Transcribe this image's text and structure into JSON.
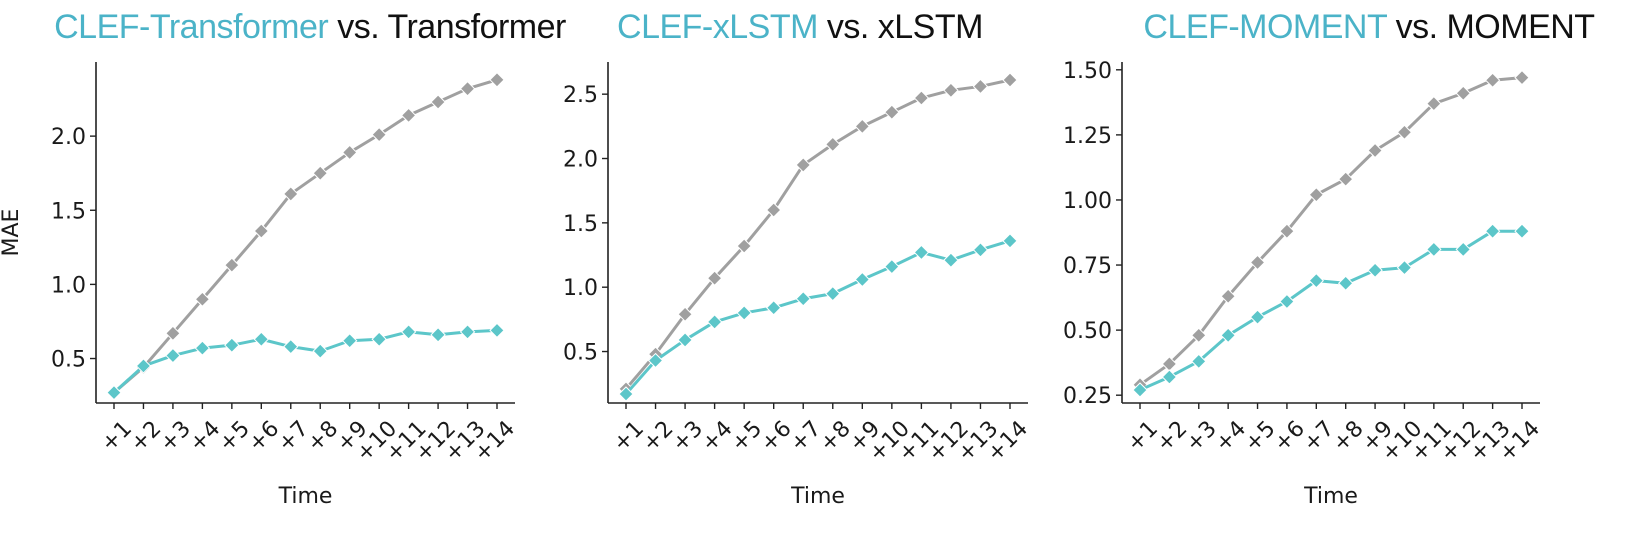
{
  "colors": {
    "baseline": "#a0a0a0",
    "clef": "#5cc6c9",
    "title_highlight": "#4bb3c8",
    "title_text": "#111111",
    "axis": "#222222"
  },
  "chart_data": [
    {
      "type": "line",
      "title_highlight": "CLEF-Transformer",
      "title_rest": " vs. Transformer",
      "xlabel": "Time",
      "ylabel": "MAE",
      "categories": [
        "+1",
        "+2",
        "+3",
        "+4",
        "+5",
        "+6",
        "+7",
        "+8",
        "+9",
        "+10",
        "+11",
        "+12",
        "+13",
        "+14"
      ],
      "ylim": [
        0.2,
        2.5
      ],
      "yticks": [
        0.5,
        1.0,
        1.5,
        2.0
      ],
      "ytick_labels": [
        "0.5",
        "1.0",
        "1.5",
        "2.0"
      ],
      "series": [
        {
          "name": "Transformer",
          "color": "#a0a0a0",
          "values": [
            0.27,
            0.44,
            0.67,
            0.9,
            1.13,
            1.36,
            1.61,
            1.75,
            1.89,
            2.01,
            2.14,
            2.23,
            2.32,
            2.38
          ]
        },
        {
          "name": "CLEF-Transformer",
          "color": "#5cc6c9",
          "values": [
            0.27,
            0.45,
            0.52,
            0.57,
            0.59,
            0.63,
            0.58,
            0.55,
            0.62,
            0.63,
            0.68,
            0.66,
            0.68,
            0.69
          ]
        }
      ]
    },
    {
      "type": "line",
      "title_highlight": "CLEF-xLSTM",
      "title_rest": " vs. xLSTM",
      "xlabel": "Time",
      "ylabel": "",
      "categories": [
        "+1",
        "+2",
        "+3",
        "+4",
        "+5",
        "+6",
        "+7",
        "+8",
        "+9",
        "+10",
        "+11",
        "+12",
        "+13",
        "+14"
      ],
      "ylim": [
        0.1,
        2.75
      ],
      "yticks": [
        0.5,
        1.0,
        1.5,
        2.0,
        2.5
      ],
      "ytick_labels": [
        "0.5",
        "1.0",
        "1.5",
        "2.0",
        "2.5"
      ],
      "series": [
        {
          "name": "xLSTM",
          "color": "#a0a0a0",
          "values": [
            0.21,
            0.48,
            0.79,
            1.07,
            1.32,
            1.6,
            1.95,
            2.11,
            2.25,
            2.36,
            2.47,
            2.53,
            2.56,
            2.61
          ]
        },
        {
          "name": "CLEF-xLSTM",
          "color": "#5cc6c9",
          "values": [
            0.17,
            0.43,
            0.59,
            0.73,
            0.8,
            0.84,
            0.91,
            0.95,
            1.06,
            1.16,
            1.27,
            1.21,
            1.29,
            1.36
          ]
        }
      ]
    },
    {
      "type": "line",
      "title_highlight": "CLEF-MOMENT",
      "title_rest": " vs. MOMENT",
      "xlabel": "Time",
      "ylabel": "",
      "categories": [
        "+1",
        "+2",
        "+3",
        "+4",
        "+5",
        "+6",
        "+7",
        "+8",
        "+9",
        "+10",
        "+11",
        "+12",
        "+13",
        "+14"
      ],
      "ylim": [
        0.22,
        1.53
      ],
      "yticks": [
        0.25,
        0.5,
        0.75,
        1.0,
        1.25,
        1.5
      ],
      "ytick_labels": [
        "0.25",
        "0.50",
        "0.75",
        "1.00",
        "1.25",
        "1.50"
      ],
      "series": [
        {
          "name": "MOMENT",
          "color": "#a0a0a0",
          "values": [
            0.29,
            0.37,
            0.48,
            0.63,
            0.76,
            0.88,
            1.02,
            1.08,
            1.19,
            1.26,
            1.37,
            1.41,
            1.46,
            1.47
          ]
        },
        {
          "name": "CLEF-MOMENT",
          "color": "#5cc6c9",
          "values": [
            0.27,
            0.32,
            0.38,
            0.48,
            0.55,
            0.61,
            0.69,
            0.68,
            0.73,
            0.74,
            0.81,
            0.81,
            0.88,
            0.88
          ]
        }
      ]
    }
  ]
}
